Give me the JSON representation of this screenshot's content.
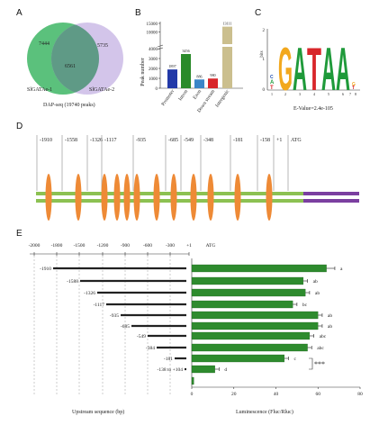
{
  "panels": {
    "a": {
      "letter": "A",
      "left_only": "7444",
      "right_only": "5735",
      "overlap": "6561",
      "left_label": "SlGATAe-1",
      "right_label": "SlGATAe-2",
      "caption": "DAP-seq (19740 peaks)",
      "colors": {
        "left": "#44b86a",
        "right": "#cbbbe6",
        "overlap": "#5f9a86"
      }
    },
    "b": {
      "letter": "B",
      "ylabel": "Peak number",
      "yticks": [
        "0",
        "1000",
        "2000",
        "3000",
        "4000",
        "10000",
        "15000"
      ],
      "categories": [
        "Promoter",
        "Intron",
        "Exon",
        "Down stream",
        "Intergenic"
      ],
      "values": [
        1897,
        3456,
        886,
        980,
        13111
      ],
      "value_labels": [
        "1897",
        "3456",
        "886",
        "980",
        "13111"
      ],
      "colors": [
        "#2239a8",
        "#2a8a2a",
        "#3a86c8",
        "#d8262a",
        "#cbbf8e"
      ]
    },
    "c": {
      "letter": "C",
      "ylabel": "bits",
      "yticks": [
        "0",
        "1",
        "2"
      ],
      "positions": [
        "1",
        "2",
        "3",
        "4",
        "5",
        "6",
        "7",
        "8"
      ],
      "letters": [
        "G",
        "A",
        "T",
        "A",
        "A"
      ],
      "evalue": "E-Value=2.4e-105",
      "colors": {
        "G": "#f2a81e",
        "A": "#1f9a3a",
        "T": "#d8262a",
        "C": "#1f4fb0"
      }
    },
    "d": {
      "letter": "D",
      "sites": [
        "-1910",
        "-1558",
        "-1326",
        "-1117",
        "-935",
        "-685",
        "-549",
        "-348",
        "-181",
        "-158",
        "+1",
        "ATG"
      ],
      "colors": {
        "promoter": "#8cc152",
        "gene": "#7b3fa0",
        "site": "#ee8a36"
      }
    },
    "e": {
      "letter": "E",
      "left_ticks": [
        "-2000",
        "-1800",
        "-1500",
        "-1200",
        "-900",
        "-600",
        "-300",
        "+1",
        "ATG"
      ],
      "left_xlabel": "Upstream sequence (bp)",
      "constructs": [
        "-1910",
        "-1588",
        "-1326",
        "-1117",
        "-935",
        "-685",
        "-549",
        "-384",
        "-181",
        "-138 to +104"
      ],
      "right_xlabel": "Luminescence (Fluc/Rluc)",
      "right_xticks": [
        "0",
        "20",
        "40",
        "60",
        "80"
      ],
      "significance": "***",
      "bar_color": "#2e8b2e",
      "chart_data": {
        "type": "bar",
        "orientation": "horizontal",
        "categories": [
          "-1910",
          "-1588",
          "-1326",
          "-1117",
          "-935",
          "-685",
          "-549",
          "-384",
          "-181",
          "-138 to +104",
          ""
        ],
        "values": [
          64,
          53,
          54,
          48,
          60,
          60,
          56,
          55,
          44,
          11,
          1
        ],
        "errors": [
          4,
          2,
          2,
          2,
          2,
          2,
          2,
          2,
          2,
          2,
          0
        ],
        "letters": [
          "a",
          "ab",
          "ab",
          "bc",
          "ab",
          "ab",
          "abc",
          "abc",
          "c",
          "d",
          ""
        ],
        "xlim": [
          0,
          80
        ],
        "xlabel": "Luminescence (Fluc/Rluc)"
      }
    }
  }
}
